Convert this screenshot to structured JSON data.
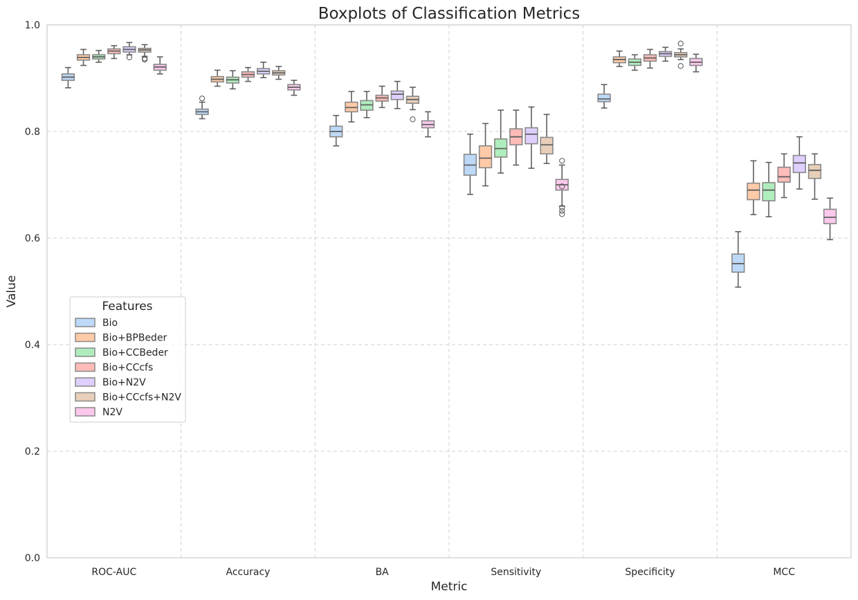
{
  "chart_data": {
    "type": "box",
    "title": "Boxplots of Classification Metrics",
    "xlabel": "Metric",
    "ylabel": "Value",
    "ylim": [
      0,
      1
    ],
    "yticks": [
      "0.0",
      "0.2",
      "0.4",
      "0.6",
      "0.8",
      "1.0"
    ],
    "categories": [
      "ROC-AUC",
      "Accuracy",
      "BA",
      "Sensitivity",
      "Specificity",
      "MCC"
    ],
    "grid": true,
    "legend": {
      "title": "Features",
      "position": "center-left"
    },
    "series": [
      {
        "name": "Bio",
        "color": "#a1c9f4",
        "boxes": [
          {
            "whisker_low": 0.882,
            "q1": 0.896,
            "median": 0.902,
            "q3": 0.908,
            "whisker_high": 0.92,
            "outliers": []
          },
          {
            "whisker_low": 0.824,
            "q1": 0.832,
            "median": 0.837,
            "q3": 0.842,
            "whisker_high": 0.855,
            "outliers": [
              0.862
            ]
          },
          {
            "whisker_low": 0.773,
            "q1": 0.79,
            "median": 0.8,
            "q3": 0.81,
            "whisker_high": 0.83,
            "outliers": []
          },
          {
            "whisker_low": 0.682,
            "q1": 0.718,
            "median": 0.737,
            "q3": 0.757,
            "whisker_high": 0.795,
            "outliers": []
          },
          {
            "whisker_low": 0.844,
            "q1": 0.856,
            "median": 0.861,
            "q3": 0.87,
            "whisker_high": 0.888,
            "outliers": []
          },
          {
            "whisker_low": 0.508,
            "q1": 0.536,
            "median": 0.552,
            "q3": 0.57,
            "whisker_high": 0.612,
            "outliers": []
          }
        ]
      },
      {
        "name": "Bio+BPBeder",
        "color": "#ffb482",
        "boxes": [
          {
            "whisker_low": 0.924,
            "q1": 0.934,
            "median": 0.939,
            "q3": 0.944,
            "whisker_high": 0.954,
            "outliers": []
          },
          {
            "whisker_low": 0.885,
            "q1": 0.893,
            "median": 0.898,
            "q3": 0.903,
            "whisker_high": 0.915,
            "outliers": []
          },
          {
            "whisker_low": 0.818,
            "q1": 0.837,
            "median": 0.845,
            "q3": 0.855,
            "whisker_high": 0.875,
            "outliers": []
          },
          {
            "whisker_low": 0.698,
            "q1": 0.732,
            "median": 0.75,
            "q3": 0.773,
            "whisker_high": 0.815,
            "outliers": []
          },
          {
            "whisker_low": 0.922,
            "q1": 0.929,
            "median": 0.935,
            "q3": 0.94,
            "whisker_high": 0.951,
            "outliers": []
          },
          {
            "whisker_low": 0.644,
            "q1": 0.672,
            "median": 0.69,
            "q3": 0.703,
            "whisker_high": 0.745,
            "outliers": []
          }
        ]
      },
      {
        "name": "Bio+CCBeder",
        "color": "#8de5a1",
        "boxes": [
          {
            "whisker_low": 0.93,
            "q1": 0.936,
            "median": 0.94,
            "q3": 0.944,
            "whisker_high": 0.952,
            "outliers": []
          },
          {
            "whisker_low": 0.88,
            "q1": 0.891,
            "median": 0.897,
            "q3": 0.902,
            "whisker_high": 0.914,
            "outliers": []
          },
          {
            "whisker_low": 0.826,
            "q1": 0.84,
            "median": 0.85,
            "q3": 0.858,
            "whisker_high": 0.875,
            "outliers": []
          },
          {
            "whisker_low": 0.722,
            "q1": 0.752,
            "median": 0.768,
            "q3": 0.786,
            "whisker_high": 0.84,
            "outliers": []
          },
          {
            "whisker_low": 0.915,
            "q1": 0.924,
            "median": 0.93,
            "q3": 0.936,
            "whisker_high": 0.944,
            "outliers": []
          },
          {
            "whisker_low": 0.64,
            "q1": 0.67,
            "median": 0.69,
            "q3": 0.704,
            "whisker_high": 0.742,
            "outliers": []
          }
        ]
      },
      {
        "name": "Bio+CCcfs",
        "color": "#ff9f9b",
        "boxes": [
          {
            "whisker_low": 0.937,
            "q1": 0.946,
            "median": 0.951,
            "q3": 0.955,
            "whisker_high": 0.961,
            "outliers": []
          },
          {
            "whisker_low": 0.894,
            "q1": 0.902,
            "median": 0.907,
            "q3": 0.912,
            "whisker_high": 0.92,
            "outliers": []
          },
          {
            "whisker_low": 0.845,
            "q1": 0.857,
            "median": 0.863,
            "q3": 0.868,
            "whisker_high": 0.885,
            "outliers": []
          },
          {
            "whisker_low": 0.737,
            "q1": 0.775,
            "median": 0.79,
            "q3": 0.805,
            "whisker_high": 0.84,
            "outliers": []
          },
          {
            "whisker_low": 0.919,
            "q1": 0.932,
            "median": 0.938,
            "q3": 0.944,
            "whisker_high": 0.954,
            "outliers": []
          },
          {
            "whisker_low": 0.676,
            "q1": 0.705,
            "median": 0.715,
            "q3": 0.733,
            "whisker_high": 0.758,
            "outliers": []
          }
        ]
      },
      {
        "name": "Bio+N2V",
        "color": "#d0bbff",
        "boxes": [
          {
            "whisker_low": 0.944,
            "q1": 0.949,
            "median": 0.954,
            "q3": 0.959,
            "whisker_high": 0.967,
            "outliers": [
              0.939
            ]
          },
          {
            "whisker_low": 0.901,
            "q1": 0.908,
            "median": 0.913,
            "q3": 0.918,
            "whisker_high": 0.93,
            "outliers": []
          },
          {
            "whisker_low": 0.843,
            "q1": 0.86,
            "median": 0.87,
            "q3": 0.876,
            "whisker_high": 0.894,
            "outliers": []
          },
          {
            "whisker_low": 0.731,
            "q1": 0.777,
            "median": 0.795,
            "q3": 0.807,
            "whisker_high": 0.846,
            "outliers": []
          },
          {
            "whisker_low": 0.932,
            "q1": 0.941,
            "median": 0.946,
            "q3": 0.95,
            "whisker_high": 0.958,
            "outliers": []
          },
          {
            "whisker_low": 0.692,
            "q1": 0.723,
            "median": 0.741,
            "q3": 0.755,
            "whisker_high": 0.79,
            "outliers": []
          }
        ]
      },
      {
        "name": "Bio+CCcfs+N2V",
        "color": "#debb9b",
        "boxes": [
          {
            "whisker_low": 0.941,
            "q1": 0.949,
            "median": 0.953,
            "q3": 0.956,
            "whisker_high": 0.963,
            "outliers": [
              0.937,
              0.935
            ]
          },
          {
            "whisker_low": 0.898,
            "q1": 0.906,
            "median": 0.91,
            "q3": 0.914,
            "whisker_high": 0.922,
            "outliers": []
          },
          {
            "whisker_low": 0.841,
            "q1": 0.853,
            "median": 0.86,
            "q3": 0.866,
            "whisker_high": 0.883,
            "outliers": [
              0.823
            ]
          },
          {
            "whisker_low": 0.74,
            "q1": 0.758,
            "median": 0.775,
            "q3": 0.789,
            "whisker_high": 0.832,
            "outliers": []
          },
          {
            "whisker_low": 0.935,
            "q1": 0.94,
            "median": 0.944,
            "q3": 0.948,
            "whisker_high": 0.955,
            "outliers": [
              0.965,
              0.923
            ]
          },
          {
            "whisker_low": 0.673,
            "q1": 0.712,
            "median": 0.727,
            "q3": 0.738,
            "whisker_high": 0.758,
            "outliers": []
          }
        ]
      },
      {
        "name": "N2V",
        "color": "#fab0e4",
        "boxes": [
          {
            "whisker_low": 0.908,
            "q1": 0.915,
            "median": 0.921,
            "q3": 0.926,
            "whisker_high": 0.94,
            "outliers": []
          },
          {
            "whisker_low": 0.868,
            "q1": 0.878,
            "median": 0.883,
            "q3": 0.888,
            "whisker_high": 0.896,
            "outliers": []
          },
          {
            "whisker_low": 0.79,
            "q1": 0.807,
            "median": 0.813,
            "q3": 0.82,
            "whisker_high": 0.837,
            "outliers": []
          },
          {
            "whisker_low": 0.66,
            "q1": 0.69,
            "median": 0.7,
            "q3": 0.71,
            "whisker_high": 0.737,
            "outliers": [
              0.745,
              0.697,
              0.657,
              0.651,
              0.645
            ]
          },
          {
            "whisker_low": 0.912,
            "q1": 0.924,
            "median": 0.93,
            "q3": 0.937,
            "whisker_high": 0.945,
            "outliers": []
          },
          {
            "whisker_low": 0.597,
            "q1": 0.627,
            "median": 0.639,
            "q3": 0.654,
            "whisker_high": 0.675,
            "outliers": []
          }
        ]
      }
    ]
  }
}
